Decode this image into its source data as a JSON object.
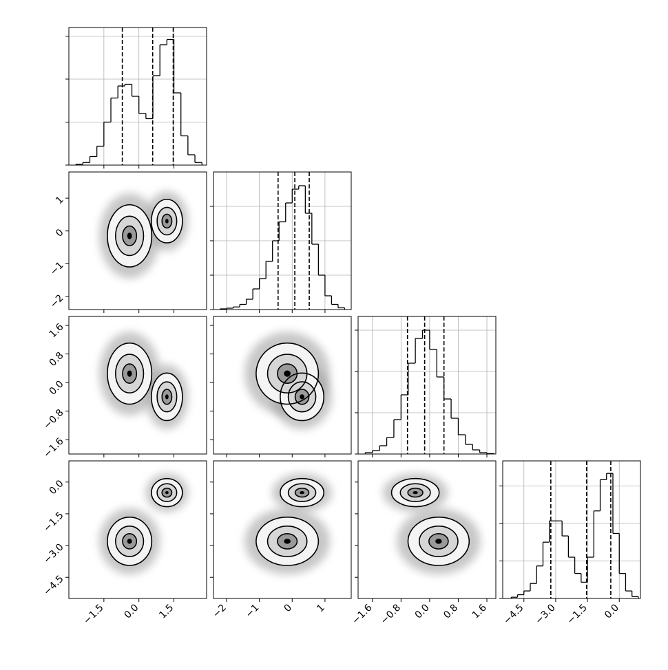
{
  "chart_data": {
    "type": "corner",
    "params": [
      {
        "xlim": [
          -3.0,
          2.9
        ],
        "xticks": [
          {
            "value": -1.5,
            "label": "−1.5"
          },
          {
            "value": 0,
            "label": "0.0"
          },
          1.5
        ]
      },
      {
        "xlim": [
          -2.4,
          1.8
        ],
        "xticks": [
          {
            "value": -2,
            "label": "−2"
          },
          {
            "value": -1,
            "label": "−1"
          },
          0,
          1
        ]
      },
      {
        "xlim": [
          -2.0,
          1.85
        ],
        "xticks": [
          {
            "value": -1.6,
            "label": "−1.6"
          },
          {
            "value": -0.8,
            "label": "−0.8"
          },
          {
            "value": 0,
            "label": "0.0"
          },
          0.8,
          1.6
        ]
      },
      {
        "xlim": [
          -5.5,
          1.0
        ],
        "xticks": [
          {
            "value": -4.5,
            "label": "−4.5"
          },
          {
            "value": -3,
            "label": "−3.0"
          },
          {
            "value": -1.5,
            "label": "−1.5"
          },
          {
            "value": 0,
            "label": "0.0"
          }
        ]
      }
    ],
    "histograms": [
      {
        "bins": [
          -2.7,
          -2.4,
          -2.1,
          -1.8,
          -1.5,
          -1.2,
          -0.9,
          -0.6,
          -0.3,
          0.0,
          0.3,
          0.6,
          0.9,
          1.2,
          1.5,
          1.8,
          2.1,
          2.4,
          2.7
        ],
        "counts": [
          5,
          15,
          50,
          110,
          250,
          390,
          460,
          470,
          400,
          300,
          270,
          520,
          700,
          730,
          420,
          170,
          60,
          15
        ],
        "ylim": [
          0,
          800
        ],
        "yticks": [
          0,
          250,
          500,
          750
        ],
        "quantiles": [
          -0.71,
          0.59,
          1.47
        ]
      },
      {
        "bins": [
          -2.2,
          -2.0,
          -1.8,
          -1.6,
          -1.4,
          -1.2,
          -1.0,
          -0.8,
          -0.6,
          -0.4,
          -0.2,
          0.0,
          0.2,
          0.4,
          0.6,
          0.8,
          1.0,
          1.2,
          1.4,
          1.6
        ],
        "counts": [
          4,
          8,
          15,
          30,
          60,
          120,
          180,
          280,
          400,
          510,
          620,
          700,
          720,
          560,
          380,
          200,
          80,
          30,
          10
        ],
        "ylim": [
          0,
          800
        ],
        "yticks": [
          0,
          200,
          400,
          600
        ],
        "quantiles": [
          -0.43,
          0.08,
          0.52
        ]
      },
      {
        "bins": [
          -1.8,
          -1.6,
          -1.4,
          -1.2,
          -1.0,
          -0.8,
          -0.6,
          -0.4,
          -0.2,
          0.0,
          0.2,
          0.4,
          0.6,
          0.8,
          1.0,
          1.2,
          1.4,
          1.6,
          1.8
        ],
        "counts": [
          10,
          25,
          60,
          120,
          250,
          430,
          660,
          840,
          900,
          760,
          560,
          400,
          260,
          140,
          70,
          30,
          10,
          3
        ],
        "ylim": [
          0,
          1000
        ],
        "yticks": [
          0,
          300,
          600,
          900
        ],
        "quantiles": [
          -0.62,
          -0.14,
          0.4
        ]
      },
      {
        "bins": [
          -5.1,
          -4.8,
          -4.5,
          -4.2,
          -3.9,
          -3.6,
          -3.3,
          -3.0,
          -2.7,
          -2.4,
          -2.1,
          -1.8,
          -1.5,
          -1.2,
          -0.9,
          -0.6,
          -0.3,
          0.0,
          0.3,
          0.6,
          0.9
        ],
        "counts": [
          10,
          30,
          60,
          120,
          260,
          450,
          620,
          620,
          500,
          330,
          200,
          130,
          330,
          700,
          950,
          1000,
          520,
          200,
          60,
          15
        ],
        "ylim": [
          0,
          1100
        ],
        "yticks": [
          0,
          300,
          600,
          900
        ],
        "quantiles": [
          -3.23,
          -1.54,
          -0.4
        ]
      }
    ],
    "modes": [
      {
        "mean": [
          -0.4,
          -0.15,
          0.25,
          -2.8
        ],
        "sigma": [
          0.5,
          0.5,
          0.45,
          0.6
        ]
      },
      {
        "mean": [
          1.2,
          0.3,
          -0.4,
          -0.5
        ],
        "sigma": [
          0.35,
          0.35,
          0.35,
          0.35
        ]
      }
    ]
  }
}
